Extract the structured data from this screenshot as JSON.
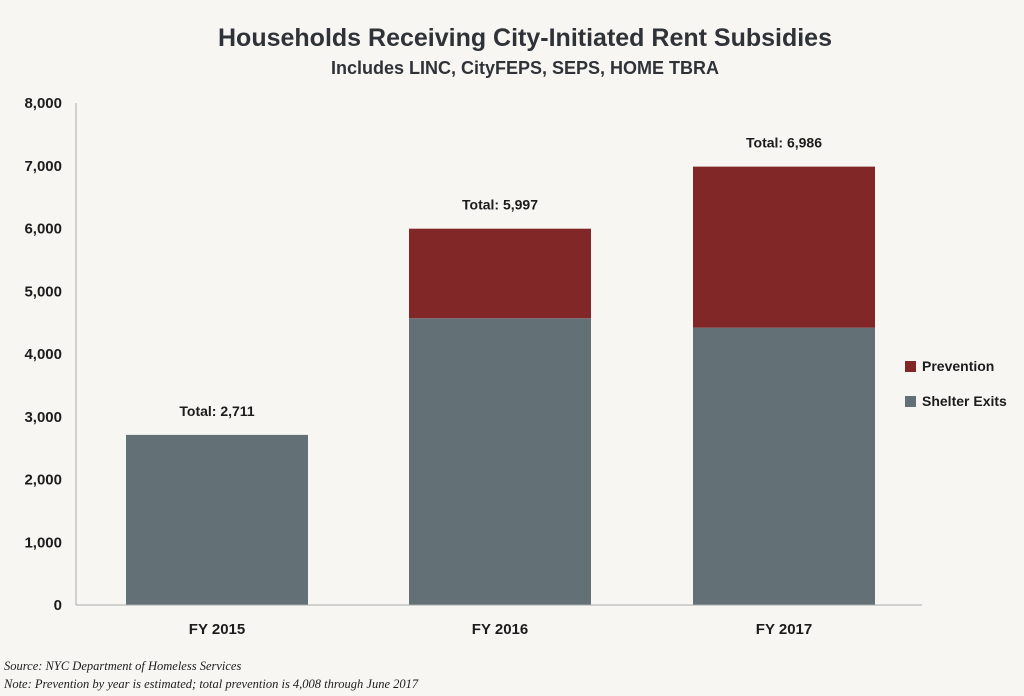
{
  "chart_data": {
    "type": "bar",
    "stacked": true,
    "title": "Households Receiving City-Initiated Rent Subsidies",
    "subtitle": "Includes LINC, CityFEPS, SEPS, HOME TBRA",
    "categories": [
      "FY 2015",
      "FY 2016",
      "FY 2017"
    ],
    "series": [
      {
        "name": "Shelter Exits",
        "values": [
          2711,
          4570,
          4420
        ],
        "color": "#637177"
      },
      {
        "name": "Prevention",
        "values": [
          0,
          1427,
          2566
        ],
        "color": "#822727"
      }
    ],
    "totals": [
      "Total: 2,711",
      "Total: 5,997",
      "Total: 6,986"
    ],
    "total_values": [
      2711,
      5997,
      6986
    ],
    "ylim": [
      0,
      8000
    ],
    "yticks": [
      0,
      1000,
      2000,
      3000,
      4000,
      5000,
      6000,
      7000,
      8000
    ],
    "ytick_labels": [
      "0",
      "1,000",
      "2,000",
      "3,000",
      "4,000",
      "5,000",
      "6,000",
      "7,000",
      "8,000"
    ],
    "xlabel": "",
    "ylabel": "",
    "grid": false,
    "legend": {
      "position": "right",
      "entries": [
        {
          "name": "Prevention",
          "color": "#822727"
        },
        {
          "name": "Shelter Exits",
          "color": "#637177"
        }
      ]
    }
  },
  "footnotes": {
    "source": "Source: NYC Department of Homeless Services",
    "note": "Note: Prevention by year is estimated; total prevention is 4,008 through June 2017"
  },
  "colors": {
    "background": "#f8f6f3",
    "axis": "#a9a9a9",
    "text": "#1c1c1c"
  }
}
